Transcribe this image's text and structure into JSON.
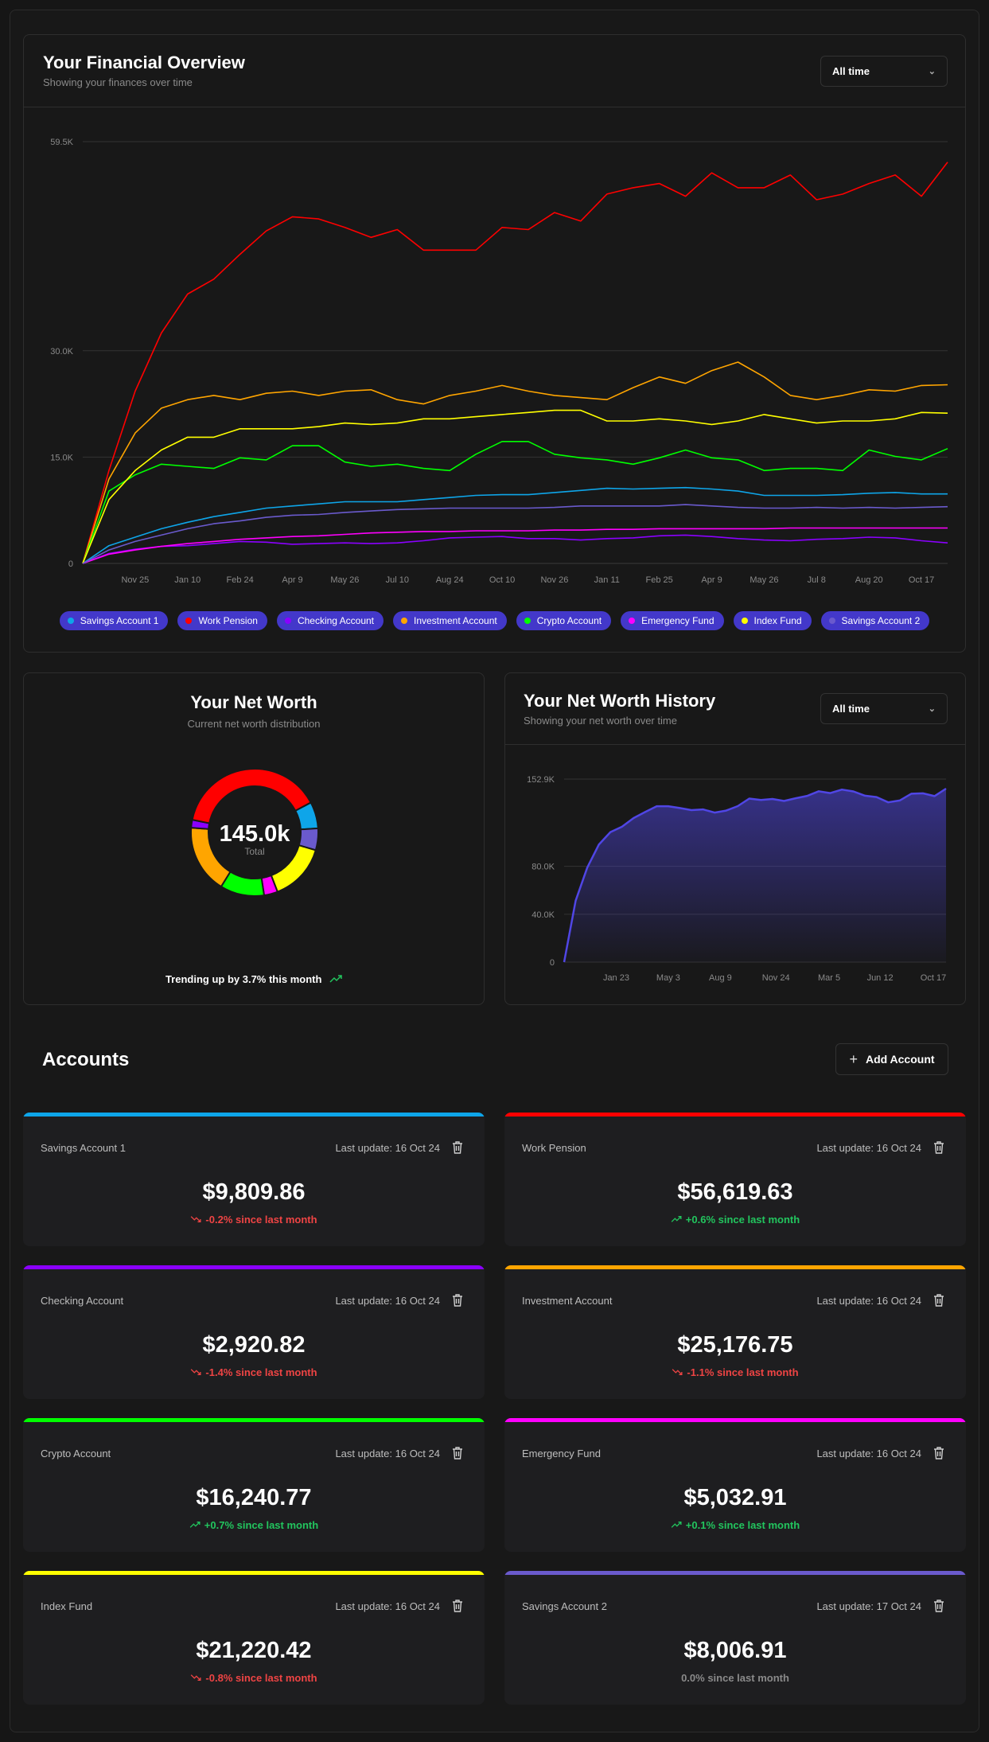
{
  "overview": {
    "title": "Your Financial Overview",
    "subtitle": "Showing your finances over time",
    "range_select": "All time"
  },
  "net_worth": {
    "title": "Your Net Worth",
    "subtitle": "Current net worth distribution",
    "total": "145.0k",
    "total_label": "Total",
    "trend": "Trending up by 3.7% this month",
    "trend_color": "#22c55e"
  },
  "history": {
    "title": "Your Net Worth History",
    "subtitle": "Showing your net worth over time",
    "range_select": "All time"
  },
  "accounts_section": {
    "title": "Accounts",
    "add_label": "Add Account"
  },
  "accounts": [
    {
      "name": "Savings Account 1",
      "color": "#0ea5e9",
      "updated": "Last update: 16 Oct 24",
      "amount": "$9,809.86",
      "balance": 9809.86,
      "change": "-0.2% since last month",
      "dir": "down"
    },
    {
      "name": "Work Pension",
      "color": "#ff0000",
      "updated": "Last update: 16 Oct 24",
      "amount": "$56,619.63",
      "balance": 56619.63,
      "change": "+0.6% since last month",
      "dir": "up"
    },
    {
      "name": "Checking Account",
      "color": "#8b00ff",
      "updated": "Last update: 16 Oct 24",
      "amount": "$2,920.82",
      "balance": 2920.82,
      "change": "-1.4% since last month",
      "dir": "down"
    },
    {
      "name": "Investment Account",
      "color": "#ffa500",
      "updated": "Last update: 16 Oct 24",
      "amount": "$25,176.75",
      "balance": 25176.75,
      "change": "-1.1% since last month",
      "dir": "down"
    },
    {
      "name": "Crypto Account",
      "color": "#00ff00",
      "updated": "Last update: 16 Oct 24",
      "amount": "$16,240.77",
      "balance": 16240.77,
      "change": "+0.7% since last month",
      "dir": "up"
    },
    {
      "name": "Emergency Fund",
      "color": "#ff00ff",
      "updated": "Last update: 16 Oct 24",
      "amount": "$5,032.91",
      "balance": 5032.91,
      "change": "+0.1% since last month",
      "dir": "up"
    },
    {
      "name": "Index Fund",
      "color": "#ffff00",
      "updated": "Last update: 16 Oct 24",
      "amount": "$21,220.42",
      "balance": 21220.42,
      "change": "-0.8% since last month",
      "dir": "down"
    },
    {
      "name": "Savings Account 2",
      "color": "#6a5acd",
      "updated": "Last update: 17 Oct 24",
      "amount": "$8,006.91",
      "balance": 8006.91,
      "change": "0.0% since last month",
      "dir": "flat"
    }
  ],
  "chart_data": [
    {
      "type": "line",
      "ylim": [
        0,
        59.5
      ],
      "y_unit": "K",
      "y_ticks": [
        "0",
        "15.0K",
        "30.0K",
        "59.5K"
      ],
      "y_tick_values": [
        0,
        15,
        30,
        59.5
      ],
      "grid": true,
      "legend": "bottom",
      "x_ticks": [
        {
          "index": 2,
          "label": "Nov 25"
        },
        {
          "index": 4,
          "label": "Jan 10"
        },
        {
          "index": 6,
          "label": "Feb 24"
        },
        {
          "index": 8,
          "label": "Apr 9"
        },
        {
          "index": 10,
          "label": "May 26"
        },
        {
          "index": 12,
          "label": "Jul 10"
        },
        {
          "index": 14,
          "label": "Aug 24"
        },
        {
          "index": 16,
          "label": "Oct 10"
        },
        {
          "index": 18,
          "label": "Nov 26"
        },
        {
          "index": 20,
          "label": "Jan 11"
        },
        {
          "index": 22,
          "label": "Feb 25"
        },
        {
          "index": 24,
          "label": "Apr 9"
        },
        {
          "index": 26,
          "label": "May 26"
        },
        {
          "index": 28,
          "label": "Jul 8"
        },
        {
          "index": 30,
          "label": "Aug 20"
        },
        {
          "index": 32,
          "label": "Oct 17"
        }
      ],
      "series": [
        {
          "name": "Savings Account 1",
          "color": "#0ea5e9",
          "values": [
            0,
            2.5,
            3.7,
            4.9,
            5.8,
            6.6,
            7.2,
            7.8,
            8.1,
            8.4,
            8.7,
            8.7,
            8.7,
            9,
            9.3,
            9.6,
            9.7,
            9.7,
            10,
            10.3,
            10.6,
            10.5,
            10.6,
            10.7,
            10.5,
            10.2,
            9.6,
            9.6,
            9.6,
            9.7,
            9.9,
            10,
            9.8,
            9.8
          ]
        },
        {
          "name": "Work Pension",
          "color": "#ff0000",
          "values": [
            0,
            13.1,
            24.3,
            32.5,
            38,
            40.1,
            43.6,
            46.9,
            48.9,
            48.6,
            47.4,
            46,
            47.1,
            44.2,
            44.2,
            44.2,
            47.4,
            47.1,
            49.5,
            48.3,
            52.1,
            53,
            53.6,
            51.8,
            55.1,
            53,
            53,
            54.8,
            51.3,
            52.1,
            53.6,
            54.8,
            51.8,
            56.6
          ]
        },
        {
          "name": "Checking Account",
          "color": "#8b00ff",
          "values": [
            0,
            1.4,
            2,
            2.4,
            2.5,
            2.8,
            3.1,
            3,
            2.7,
            2.8,
            2.9,
            2.8,
            2.9,
            3.2,
            3.6,
            3.7,
            3.8,
            3.5,
            3.5,
            3.3,
            3.5,
            3.6,
            3.9,
            4,
            3.8,
            3.5,
            3.3,
            3.2,
            3.4,
            3.5,
            3.7,
            3.6,
            3.2,
            2.9
          ]
        },
        {
          "name": "Investment Account",
          "color": "#ffa500",
          "values": [
            0,
            11.9,
            18.4,
            21.9,
            23.1,
            23.7,
            23.1,
            24,
            24.3,
            23.7,
            24.3,
            24.5,
            23.1,
            22.5,
            23.7,
            24.3,
            25.1,
            24.3,
            23.7,
            23.4,
            23.1,
            24.8,
            26.3,
            25.4,
            27.2,
            28.4,
            26.3,
            23.7,
            23.1,
            23.7,
            24.5,
            24.3,
            25.1,
            25.2
          ]
        },
        {
          "name": "Crypto Account",
          "color": "#00ff00",
          "values": [
            0,
            10.2,
            12.5,
            14,
            13.7,
            13.4,
            14.9,
            14.6,
            16.6,
            16.6,
            14.3,
            13.7,
            14,
            13.4,
            13.1,
            15.4,
            17.2,
            17.2,
            15.4,
            14.9,
            14.6,
            14,
            14.9,
            16,
            14.9,
            14.6,
            13.1,
            13.4,
            13.4,
            13.1,
            16,
            15.1,
            14.6,
            16.2
          ]
        },
        {
          "name": "Emergency Fund",
          "color": "#ff00ff",
          "values": [
            0,
            1.3,
            1.9,
            2.4,
            2.8,
            3.1,
            3.4,
            3.6,
            3.8,
            3.9,
            4.1,
            4.3,
            4.4,
            4.5,
            4.5,
            4.6,
            4.6,
            4.6,
            4.7,
            4.7,
            4.8,
            4.8,
            4.9,
            4.9,
            4.9,
            4.9,
            4.9,
            5,
            5,
            5,
            5,
            5,
            5,
            5
          ]
        },
        {
          "name": "Index Fund",
          "color": "#ffff00",
          "values": [
            0,
            9,
            13.1,
            16,
            17.8,
            17.8,
            19,
            19,
            19,
            19.3,
            19.8,
            19.6,
            19.8,
            20.4,
            20.4,
            20.7,
            21,
            21.3,
            21.6,
            21.6,
            20.1,
            20.1,
            20.4,
            20.1,
            19.6,
            20.1,
            21,
            20.4,
            19.8,
            20.1,
            20.1,
            20.4,
            21.3,
            21.2
          ]
        },
        {
          "name": "Savings Account 2",
          "color": "#6a5acd",
          "values": [
            0,
            1.9,
            3.1,
            4,
            4.9,
            5.6,
            6,
            6.5,
            6.8,
            6.9,
            7.2,
            7.4,
            7.6,
            7.7,
            7.8,
            7.8,
            7.8,
            7.8,
            7.9,
            8.1,
            8.1,
            8.1,
            8.1,
            8.3,
            8.1,
            7.9,
            7.8,
            7.8,
            7.9,
            7.8,
            7.9,
            7.8,
            7.9,
            8
          ]
        }
      ]
    },
    {
      "type": "pie",
      "donut": true,
      "categories": [
        "Savings Account 1",
        "Savings Account 2",
        "Index Fund",
        "Emergency Fund",
        "Crypto Account",
        "Investment Account",
        "Checking Account",
        "Work Pension"
      ],
      "values": [
        9809.86,
        8006.91,
        21220.42,
        5032.91,
        16240.77,
        25176.75,
        2920.82,
        56619.63
      ],
      "colors": [
        "#0ea5e9",
        "#6a5acd",
        "#ffff00",
        "#ff00ff",
        "#00ff00",
        "#ffa500",
        "#8b00ff",
        "#ff0000"
      ]
    },
    {
      "type": "area",
      "ylim": [
        0,
        152.9
      ],
      "y_unit": "K",
      "y_ticks": [
        "0",
        "40.0K",
        "80.0K",
        "152.9K"
      ],
      "y_tick_values": [
        0,
        40,
        80,
        152.9
      ],
      "grid": true,
      "color": "#5046e5",
      "x_ticks": [
        {
          "index": 4.5,
          "label": "Jan 23"
        },
        {
          "index": 9,
          "label": "May 3"
        },
        {
          "index": 13.5,
          "label": "Aug 9"
        },
        {
          "index": 18.3,
          "label": "Nov 24"
        },
        {
          "index": 22.9,
          "label": "Mar 5"
        },
        {
          "index": 27.3,
          "label": "Jun 12"
        },
        {
          "index": 31.9,
          "label": "Oct 17"
        }
      ],
      "values": [
        0,
        51.3,
        79,
        98.1,
        108.6,
        113.1,
        120.3,
        125.4,
        130.2,
        130.2,
        128.7,
        127,
        127.6,
        124.9,
        126.6,
        130.3,
        136.6,
        135.5,
        136.3,
        134.6,
        136.9,
        138.9,
        142.7,
        141.2,
        144.1,
        142.6,
        139,
        137.9,
        133.5,
        135,
        140.7,
        141,
        138.7,
        144.9
      ]
    }
  ]
}
